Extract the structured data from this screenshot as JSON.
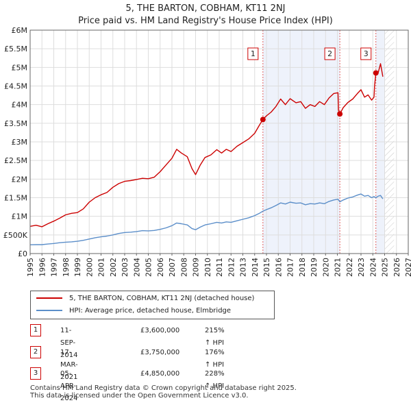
{
  "title_line1": "5, THE BARTON, COBHAM, KT11 2NJ",
  "title_line2": "Price paid vs. HM Land Registry's House Price Index (HPI)",
  "colors": {
    "property": "#cc0000",
    "hpi": "#5b8ec9",
    "shade": "#eef2fb",
    "vline": "#e06060",
    "grid": "#dddddd"
  },
  "chart_data": {
    "type": "line",
    "title": "Price paid vs. HM Land Registry's House Price Index (HPI)",
    "xlim": [
      1995,
      2027
    ],
    "ylim": [
      0,
      6000000
    ],
    "xticks": [
      "1995",
      "1996",
      "1997",
      "1998",
      "1999",
      "2000",
      "2001",
      "2002",
      "2003",
      "2004",
      "2005",
      "2006",
      "2007",
      "2008",
      "2009",
      "2010",
      "2011",
      "2012",
      "2013",
      "2014",
      "2015",
      "2016",
      "2017",
      "2018",
      "2019",
      "2020",
      "2021",
      "2022",
      "2023",
      "2024",
      "2025",
      "2026",
      "2027"
    ],
    "yticks": [
      {
        "value": 0,
        "label": "£0"
      },
      {
        "value": 500000,
        "label": "£500K"
      },
      {
        "value": 1000000,
        "label": "£1M"
      },
      {
        "value": 1500000,
        "label": "£1.5M"
      },
      {
        "value": 2000000,
        "label": "£2M"
      },
      {
        "value": 2500000,
        "label": "£2.5M"
      },
      {
        "value": 3000000,
        "label": "£3M"
      },
      {
        "value": 3500000,
        "label": "£3.5M"
      },
      {
        "value": 4000000,
        "label": "£4M"
      },
      {
        "value": 4500000,
        "label": "£4.5M"
      },
      {
        "value": 5000000,
        "label": "£5M"
      },
      {
        "value": 5500000,
        "label": "£5.5M"
      },
      {
        "value": 6000000,
        "label": "£6M"
      }
    ],
    "shaded_ranges": [
      [
        2014.7,
        2021.21
      ],
      [
        2024.26,
        2025.0
      ]
    ],
    "hatched_range": [
      2025.0,
      2025.8
    ],
    "series": [
      {
        "name": "5, THE BARTON, COBHAM, KT11 2NJ (detached house)",
        "color": "#cc0000",
        "points": [
          [
            1995.0,
            730000
          ],
          [
            1995.5,
            760000
          ],
          [
            1996.0,
            720000
          ],
          [
            1996.5,
            800000
          ],
          [
            1997.0,
            870000
          ],
          [
            1997.5,
            950000
          ],
          [
            1998.0,
            1040000
          ],
          [
            1998.5,
            1080000
          ],
          [
            1999.0,
            1100000
          ],
          [
            1999.5,
            1200000
          ],
          [
            2000.0,
            1380000
          ],
          [
            2000.5,
            1500000
          ],
          [
            2001.0,
            1580000
          ],
          [
            2001.5,
            1640000
          ],
          [
            2002.0,
            1780000
          ],
          [
            2002.5,
            1880000
          ],
          [
            2003.0,
            1940000
          ],
          [
            2003.5,
            1960000
          ],
          [
            2004.0,
            1990000
          ],
          [
            2004.5,
            2020000
          ],
          [
            2005.0,
            2010000
          ],
          [
            2005.5,
            2050000
          ],
          [
            2006.0,
            2200000
          ],
          [
            2006.5,
            2380000
          ],
          [
            2007.0,
            2560000
          ],
          [
            2007.4,
            2800000
          ],
          [
            2007.8,
            2700000
          ],
          [
            2008.3,
            2600000
          ],
          [
            2008.7,
            2280000
          ],
          [
            2009.0,
            2120000
          ],
          [
            2009.4,
            2380000
          ],
          [
            2009.8,
            2580000
          ],
          [
            2010.3,
            2650000
          ],
          [
            2010.8,
            2790000
          ],
          [
            2011.2,
            2700000
          ],
          [
            2011.6,
            2800000
          ],
          [
            2012.0,
            2740000
          ],
          [
            2012.5,
            2880000
          ],
          [
            2013.0,
            2980000
          ],
          [
            2013.5,
            3080000
          ],
          [
            2014.0,
            3230000
          ],
          [
            2014.4,
            3450000
          ],
          [
            2014.7,
            3600000
          ],
          [
            2015.0,
            3700000
          ],
          [
            2015.4,
            3800000
          ],
          [
            2015.8,
            3950000
          ],
          [
            2016.2,
            4150000
          ],
          [
            2016.6,
            4000000
          ],
          [
            2017.0,
            4160000
          ],
          [
            2017.5,
            4050000
          ],
          [
            2017.9,
            4080000
          ],
          [
            2018.3,
            3900000
          ],
          [
            2018.7,
            4000000
          ],
          [
            2019.1,
            3950000
          ],
          [
            2019.5,
            4080000
          ],
          [
            2019.9,
            4000000
          ],
          [
            2020.3,
            4180000
          ],
          [
            2020.7,
            4300000
          ],
          [
            2021.05,
            4320000
          ],
          [
            2021.1,
            3850000
          ],
          [
            2021.21,
            3750000
          ],
          [
            2021.5,
            3920000
          ],
          [
            2021.9,
            4060000
          ],
          [
            2022.3,
            4150000
          ],
          [
            2022.7,
            4300000
          ],
          [
            2023.0,
            4400000
          ],
          [
            2023.3,
            4200000
          ],
          [
            2023.6,
            4260000
          ],
          [
            2023.9,
            4120000
          ],
          [
            2024.1,
            4200000
          ],
          [
            2024.15,
            4500000
          ],
          [
            2024.26,
            4850000
          ],
          [
            2024.45,
            4850000
          ],
          [
            2024.65,
            5100000
          ],
          [
            2024.85,
            4750000
          ]
        ]
      },
      {
        "name": "HPI: Average price, detached house, Elmbridge",
        "color": "#5b8ec9",
        "points": [
          [
            1995.0,
            235000
          ],
          [
            1995.5,
            240000
          ],
          [
            1996.0,
            240000
          ],
          [
            1996.5,
            255000
          ],
          [
            1997.0,
            270000
          ],
          [
            1997.5,
            290000
          ],
          [
            1998.0,
            305000
          ],
          [
            1998.5,
            315000
          ],
          [
            1999.0,
            330000
          ],
          [
            1999.5,
            355000
          ],
          [
            2000.0,
            390000
          ],
          [
            2000.5,
            425000
          ],
          [
            2001.0,
            450000
          ],
          [
            2001.5,
            470000
          ],
          [
            2002.0,
            500000
          ],
          [
            2002.5,
            540000
          ],
          [
            2003.0,
            565000
          ],
          [
            2003.5,
            575000
          ],
          [
            2004.0,
            590000
          ],
          [
            2004.5,
            615000
          ],
          [
            2005.0,
            610000
          ],
          [
            2005.5,
            620000
          ],
          [
            2006.0,
            650000
          ],
          [
            2006.5,
            690000
          ],
          [
            2007.0,
            750000
          ],
          [
            2007.4,
            820000
          ],
          [
            2007.8,
            800000
          ],
          [
            2008.3,
            770000
          ],
          [
            2008.7,
            670000
          ],
          [
            2009.0,
            640000
          ],
          [
            2009.4,
            710000
          ],
          [
            2009.8,
            770000
          ],
          [
            2010.3,
            800000
          ],
          [
            2010.8,
            840000
          ],
          [
            2011.2,
            820000
          ],
          [
            2011.6,
            850000
          ],
          [
            2012.0,
            840000
          ],
          [
            2012.5,
            880000
          ],
          [
            2013.0,
            920000
          ],
          [
            2013.5,
            960000
          ],
          [
            2014.0,
            1020000
          ],
          [
            2014.4,
            1080000
          ],
          [
            2014.7,
            1140000
          ],
          [
            2015.0,
            1180000
          ],
          [
            2015.4,
            1230000
          ],
          [
            2015.8,
            1290000
          ],
          [
            2016.2,
            1360000
          ],
          [
            2016.6,
            1330000
          ],
          [
            2017.0,
            1380000
          ],
          [
            2017.5,
            1350000
          ],
          [
            2017.9,
            1360000
          ],
          [
            2018.3,
            1310000
          ],
          [
            2018.7,
            1340000
          ],
          [
            2019.1,
            1330000
          ],
          [
            2019.5,
            1360000
          ],
          [
            2019.9,
            1340000
          ],
          [
            2020.3,
            1400000
          ],
          [
            2020.7,
            1440000
          ],
          [
            2021.05,
            1460000
          ],
          [
            2021.21,
            1390000
          ],
          [
            2021.5,
            1440000
          ],
          [
            2021.9,
            1490000
          ],
          [
            2022.3,
            1520000
          ],
          [
            2022.7,
            1570000
          ],
          [
            2023.0,
            1600000
          ],
          [
            2023.3,
            1540000
          ],
          [
            2023.6,
            1560000
          ],
          [
            2023.9,
            1500000
          ],
          [
            2024.1,
            1530000
          ],
          [
            2024.26,
            1500000
          ],
          [
            2024.45,
            1540000
          ],
          [
            2024.65,
            1560000
          ],
          [
            2024.85,
            1470000
          ]
        ]
      }
    ],
    "markers": [
      {
        "num": "1",
        "x": 2014.7,
        "y": 3600000
      },
      {
        "num": "2",
        "x": 2021.21,
        "y": 3750000
      },
      {
        "num": "3",
        "x": 2024.26,
        "y": 4850000
      }
    ]
  },
  "legend": {
    "property_label": "5, THE BARTON, COBHAM, KT11 2NJ (detached house)",
    "hpi_label": "HPI: Average price, detached house, Elmbridge"
  },
  "transactions": [
    {
      "num": "1",
      "date": "11-SEP-2014",
      "price": "£3,600,000",
      "hpi": "215% ↑ HPI"
    },
    {
      "num": "2",
      "date": "17-MAR-2021",
      "price": "£3,750,000",
      "hpi": "176% ↑ HPI"
    },
    {
      "num": "3",
      "date": "05-APR-2024",
      "price": "£4,850,000",
      "hpi": "228% ↑ HPI"
    }
  ],
  "footer": {
    "line1": "Contains HM Land Registry data © Crown copyright and database right 2025.",
    "line2": "This data is licensed under the Open Government Licence v3.0."
  }
}
